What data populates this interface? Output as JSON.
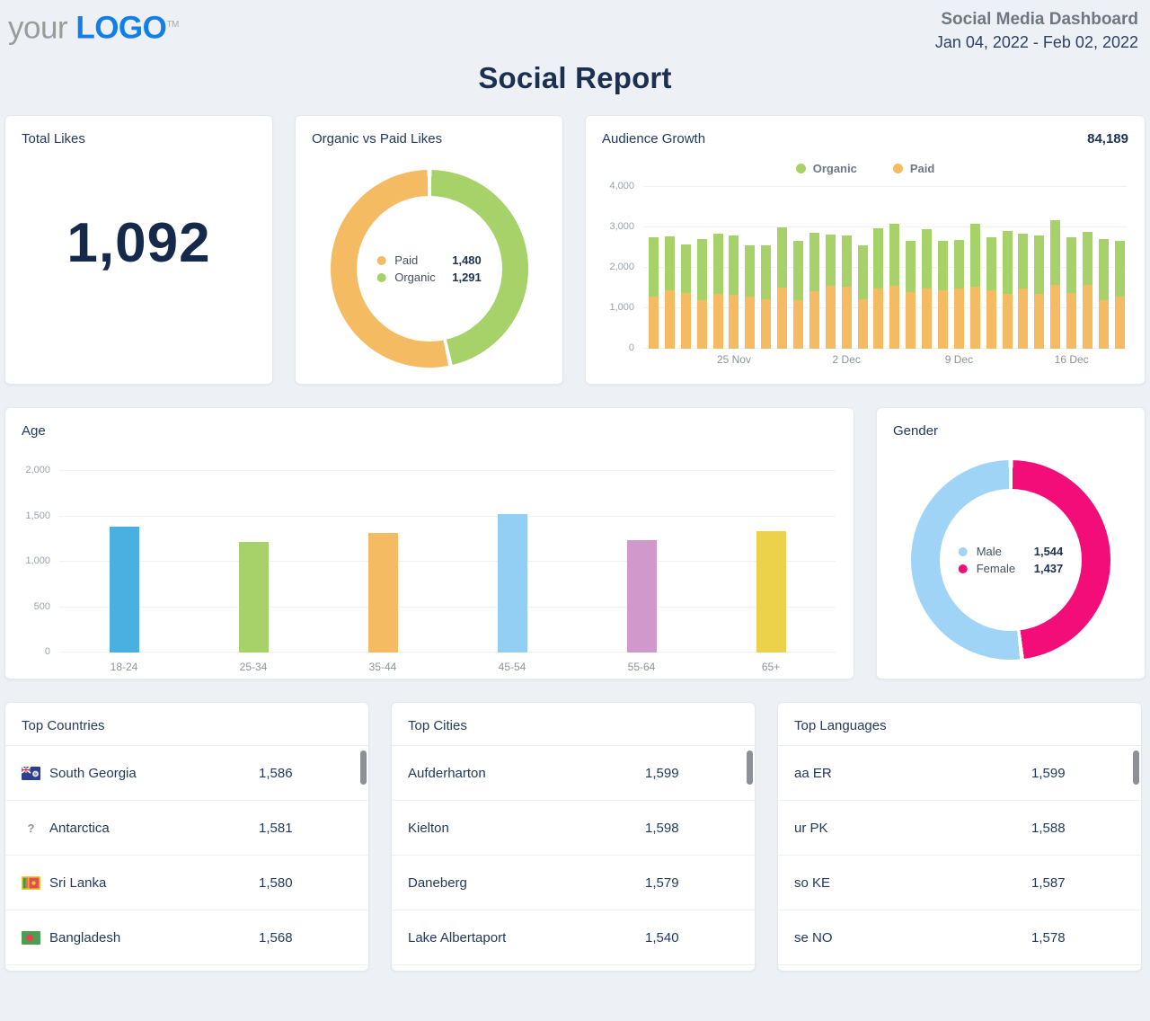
{
  "header": {
    "logo_your": "your",
    "logo_word": "LOGO",
    "logo_tm": "TM",
    "dashboard_title": "Social Media Dashboard",
    "date_range": "Jan 04, 2022 - Feb 02, 2022",
    "report_title": "Social Report"
  },
  "colors": {
    "organic_green": "#a6d269",
    "paid_orange": "#f5bb62",
    "male_blue": "#9fd4f6",
    "female_pink": "#f30d78",
    "age_blue": "#4ab0e2",
    "age_lightblue": "#93cff5",
    "age_plum": "#d098cb",
    "age_yellow": "#ecd24b",
    "navy": "#1d3254"
  },
  "total_likes": {
    "title": "Total Likes",
    "value": "1,092"
  },
  "organic_vs_paid": {
    "title": "Organic vs Paid Likes",
    "chart_data": {
      "type": "pie",
      "legend": [
        {
          "label": "Paid",
          "value": 1480,
          "display": "1,480",
          "color": "#f5bb62"
        },
        {
          "label": "Organic",
          "value": 1291,
          "display": "1,291",
          "color": "#a6d269"
        }
      ],
      "note_first_clockwise_from_top": "Organic"
    }
  },
  "audience_growth": {
    "title": "Audience Growth",
    "total": "84,189",
    "chart_data": {
      "type": "bar",
      "stacked": true,
      "ylim": [
        0,
        4000
      ],
      "yticks": [
        0,
        1000,
        2000,
        3000,
        4000
      ],
      "ytick_labels": [
        "0",
        "1,000",
        "2,000",
        "3,000",
        "4,000"
      ],
      "legend": [
        {
          "label": "Organic",
          "color": "#a6d269"
        },
        {
          "label": "Paid",
          "color": "#f5bb62"
        }
      ],
      "series_order_bottom_to_top": [
        "Paid",
        "Organic"
      ],
      "bars": [
        {
          "paid": 1290,
          "organic": 1470
        },
        {
          "paid": 1440,
          "organic": 1330
        },
        {
          "paid": 1370,
          "organic": 1210
        },
        {
          "paid": 1210,
          "organic": 1500
        },
        {
          "paid": 1350,
          "organic": 1500
        },
        {
          "paid": 1340,
          "organic": 1460,
          "label": "25 Nov"
        },
        {
          "paid": 1300,
          "organic": 1250
        },
        {
          "paid": 1230,
          "organic": 1320
        },
        {
          "paid": 1510,
          "organic": 1500
        },
        {
          "paid": 1210,
          "organic": 1460
        },
        {
          "paid": 1430,
          "organic": 1440
        },
        {
          "paid": 1560,
          "organic": 1270
        },
        {
          "paid": 1540,
          "organic": 1250,
          "label": "2 Dec"
        },
        {
          "paid": 1230,
          "organic": 1330
        },
        {
          "paid": 1500,
          "organic": 1480
        },
        {
          "paid": 1550,
          "organic": 1530
        },
        {
          "paid": 1390,
          "organic": 1280
        },
        {
          "paid": 1480,
          "organic": 1480
        },
        {
          "paid": 1450,
          "organic": 1220
        },
        {
          "paid": 1480,
          "organic": 1210,
          "label": "9 Dec"
        },
        {
          "paid": 1540,
          "organic": 1540
        },
        {
          "paid": 1440,
          "organic": 1310
        },
        {
          "paid": 1350,
          "organic": 1570
        },
        {
          "paid": 1500,
          "organic": 1340
        },
        {
          "paid": 1350,
          "organic": 1460
        },
        {
          "paid": 1580,
          "organic": 1590
        },
        {
          "paid": 1370,
          "organic": 1380,
          "label": "16 Dec"
        },
        {
          "paid": 1570,
          "organic": 1330
        },
        {
          "paid": 1190,
          "organic": 1530
        },
        {
          "paid": 1300,
          "organic": 1370
        }
      ]
    }
  },
  "age": {
    "title": "Age",
    "chart_data": {
      "type": "bar",
      "categories": [
        "18-24",
        "25-34",
        "35-44",
        "45-54",
        "55-64",
        "65+"
      ],
      "values": [
        1390,
        1215,
        1320,
        1525,
        1235,
        1340
      ],
      "colors": [
        "#4ab0e2",
        "#a6d269",
        "#f5bb62",
        "#93cff5",
        "#d098cb",
        "#ecd24b"
      ],
      "ylim": [
        0,
        2000
      ],
      "yticks": [
        0,
        500,
        1000,
        1500,
        2000
      ],
      "ytick_labels": [
        "0",
        "500",
        "1,000",
        "1,500",
        "2,000"
      ]
    }
  },
  "gender": {
    "title": "Gender",
    "chart_data": {
      "type": "pie",
      "legend": [
        {
          "label": "Male",
          "value": 1544,
          "display": "1,544",
          "color": "#9fd4f6"
        },
        {
          "label": "Female",
          "value": 1437,
          "display": "1,437",
          "color": "#f30d78"
        }
      ],
      "note_first_clockwise_from_top": "Female"
    }
  },
  "top_countries": {
    "title": "Top Countries",
    "rows": [
      {
        "flag": "south-georgia",
        "name": "South Georgia",
        "value": "1,586"
      },
      {
        "flag": "question",
        "name": "Antarctica",
        "value": "1,581"
      },
      {
        "flag": "sri-lanka",
        "name": "Sri Lanka",
        "value": "1,580"
      },
      {
        "flag": "bangladesh",
        "name": "Bangladesh",
        "value": "1,568"
      }
    ]
  },
  "top_cities": {
    "title": "Top Cities",
    "rows": [
      {
        "name": "Aufderharton",
        "value": "1,599"
      },
      {
        "name": "Kielton",
        "value": "1,598"
      },
      {
        "name": "Daneberg",
        "value": "1,579"
      },
      {
        "name": "Lake Albertaport",
        "value": "1,540"
      }
    ]
  },
  "top_languages": {
    "title": "Top Languages",
    "rows": [
      {
        "name": "aa ER",
        "value": "1,599"
      },
      {
        "name": "ur PK",
        "value": "1,588"
      },
      {
        "name": "so KE",
        "value": "1,587"
      },
      {
        "name": "se NO",
        "value": "1,578"
      }
    ]
  }
}
